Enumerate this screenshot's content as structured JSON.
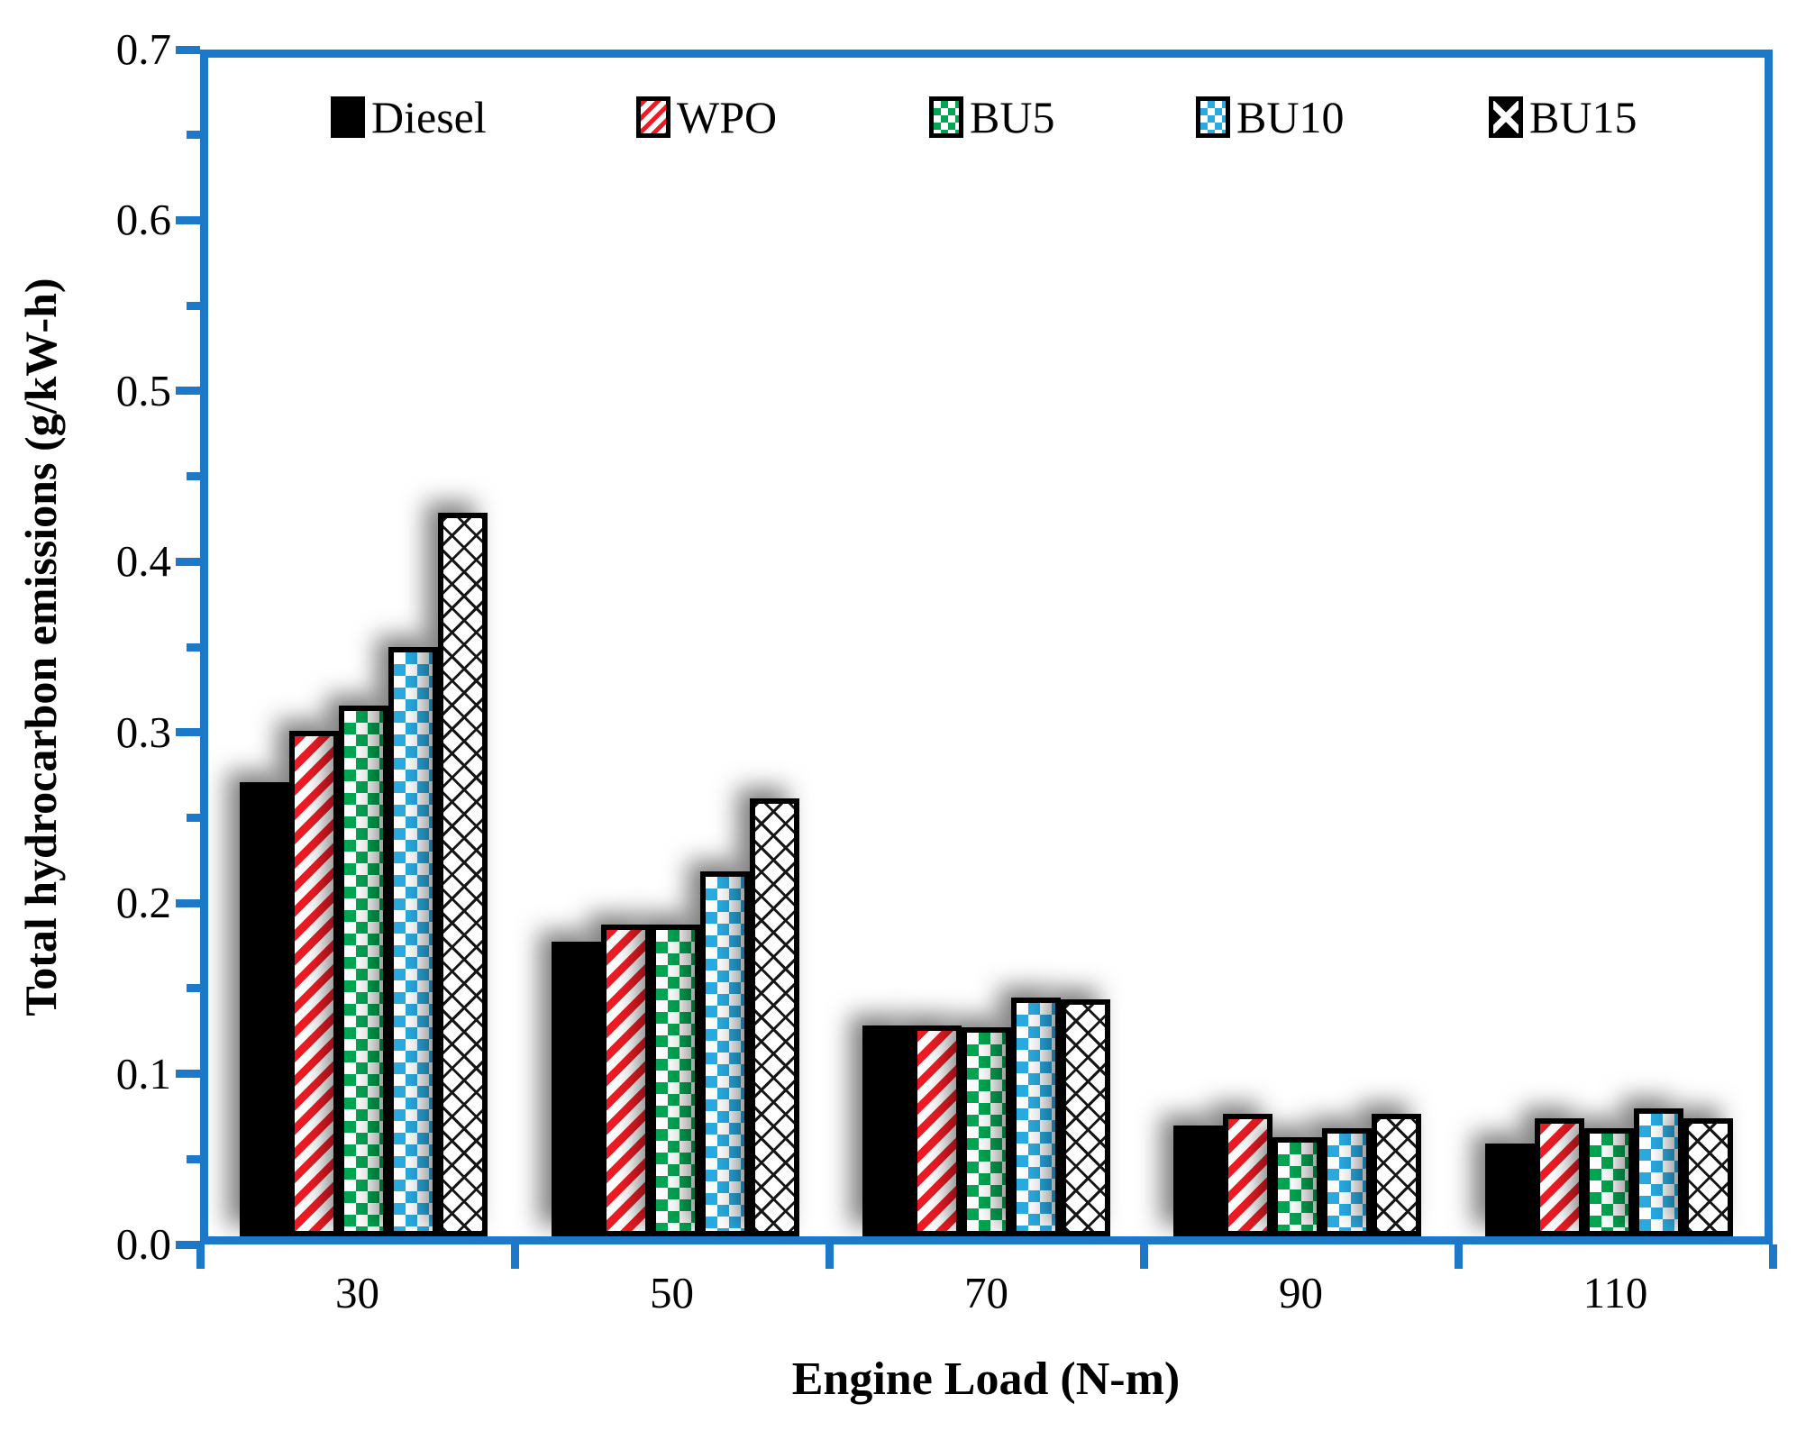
{
  "chart_data": {
    "type": "bar",
    "title": "",
    "xlabel": "Engine Load (N-m)",
    "ylabel": "Total hydrocarbon emissions (g/kW-h)",
    "categories": [
      "30",
      "50",
      "70",
      "90",
      "110"
    ],
    "series": [
      {
        "name": "Diesel",
        "fill": "solid-black",
        "values": [
          0.27,
          0.175,
          0.125,
          0.066,
          0.055
        ]
      },
      {
        "name": "WPO",
        "fill": "red-diagonal-stripes",
        "values": [
          0.3,
          0.185,
          0.125,
          0.073,
          0.07
        ]
      },
      {
        "name": "BU5",
        "fill": "green-glossy-checker",
        "values": [
          0.315,
          0.185,
          0.124,
          0.059,
          0.064
        ]
      },
      {
        "name": "BU10",
        "fill": "blue-checker",
        "values": [
          0.35,
          0.217,
          0.142,
          0.064,
          0.076
        ]
      },
      {
        "name": "BU15",
        "fill": "black-crosshatch",
        "values": [
          0.43,
          0.26,
          0.141,
          0.073,
          0.07
        ]
      }
    ],
    "ylim": [
      0,
      0.7
    ],
    "ytick_labels": [
      "0.0",
      "0.1",
      "0.2",
      "0.3",
      "0.4",
      "0.5",
      "0.6",
      "0.7"
    ],
    "ytick_minor_step": 0.05,
    "legend_position": "top-inside",
    "grid": false,
    "colors": {
      "axis_blue": "#1C78C8",
      "bar_red": "#ED1C24",
      "bar_green": "#00A651",
      "bar_blue": "#29ABE2",
      "bar_black": "#000000",
      "background": "#FFFFFF",
      "text": "#000000"
    }
  }
}
